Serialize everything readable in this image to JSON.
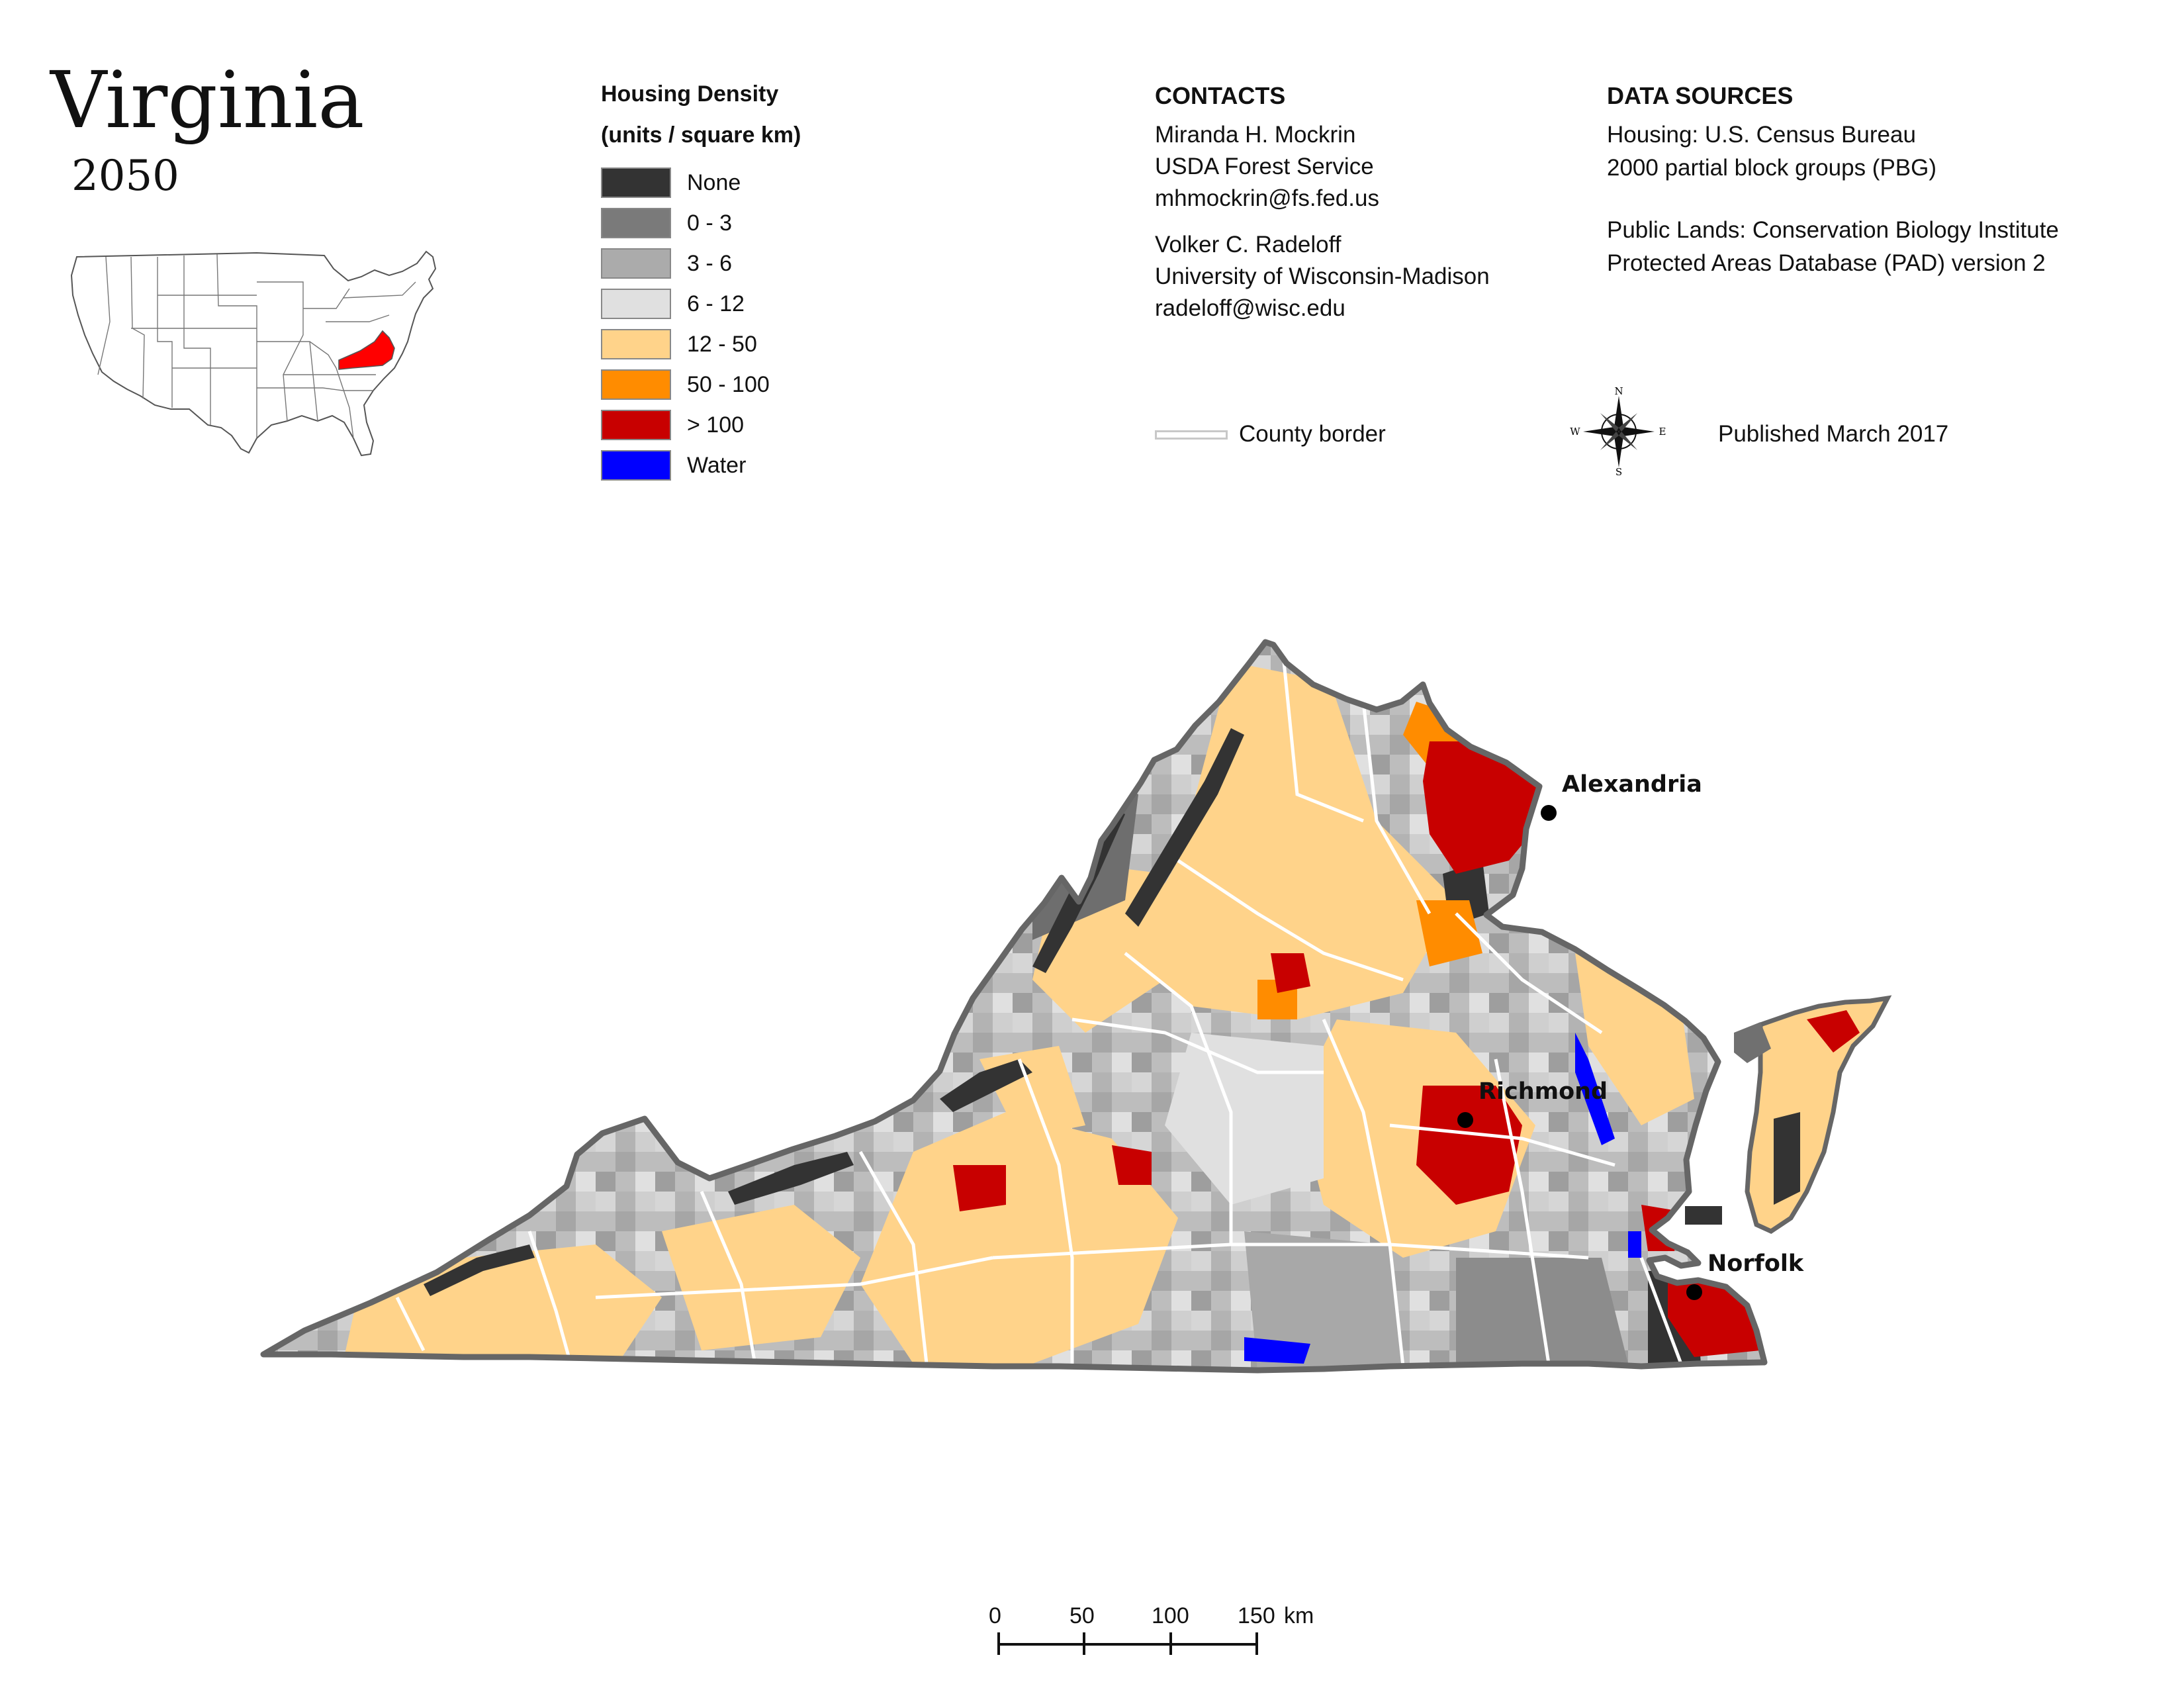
{
  "title": "Virginia",
  "subtitle": "2050",
  "legend": {
    "title_line1": "Housing Density",
    "title_line2": "(units / square km)",
    "items": [
      {
        "label": "None",
        "color": "#333333"
      },
      {
        "label": "0 - 3",
        "color": "#7a7a7a"
      },
      {
        "label": "3 - 6",
        "color": "#ababab"
      },
      {
        "label": "6 - 12",
        "color": "#e0e0e0"
      },
      {
        "label": "12 - 50",
        "color": "#ffd38a"
      },
      {
        "label": "50 - 100",
        "color": "#ff8c00"
      },
      {
        "label": "> 100",
        "color": "#c80000"
      },
      {
        "label": "Water",
        "color": "#0000ff"
      }
    ]
  },
  "contacts": {
    "heading": "CONTACTS",
    "person1": {
      "name": "Miranda H. Mockrin",
      "org": "USDA Forest Service",
      "email": "mhmockrin@fs.fed.us"
    },
    "person2": {
      "name": "Volker C. Radeloff",
      "org": "University of Wisconsin-Madison",
      "email": "radeloff@wisc.edu"
    }
  },
  "data_sources": {
    "heading": "DATA SOURCES",
    "housing_line1": "Housing: U.S. Census Bureau",
    "housing_line2": "2000 partial block groups (PBG)",
    "lands_line1": "Public Lands: Conservation Biology Institute",
    "lands_line2": "Protected Areas Database (PAD) version 2"
  },
  "county_border_label": "County border",
  "published": "Published March 2017",
  "compass": {
    "n": "N",
    "s": "S",
    "e": "E",
    "w": "W"
  },
  "cities": [
    {
      "name": "Alexandria"
    },
    {
      "name": "Richmond"
    },
    {
      "name": "Norfolk"
    }
  ],
  "scale_bar": {
    "ticks": [
      "0",
      "50",
      "100",
      "150"
    ],
    "unit": "km"
  },
  "colors": {
    "state_border": "#666666",
    "county_border": "#ffffff",
    "highlight_state": "#ff0000"
  }
}
